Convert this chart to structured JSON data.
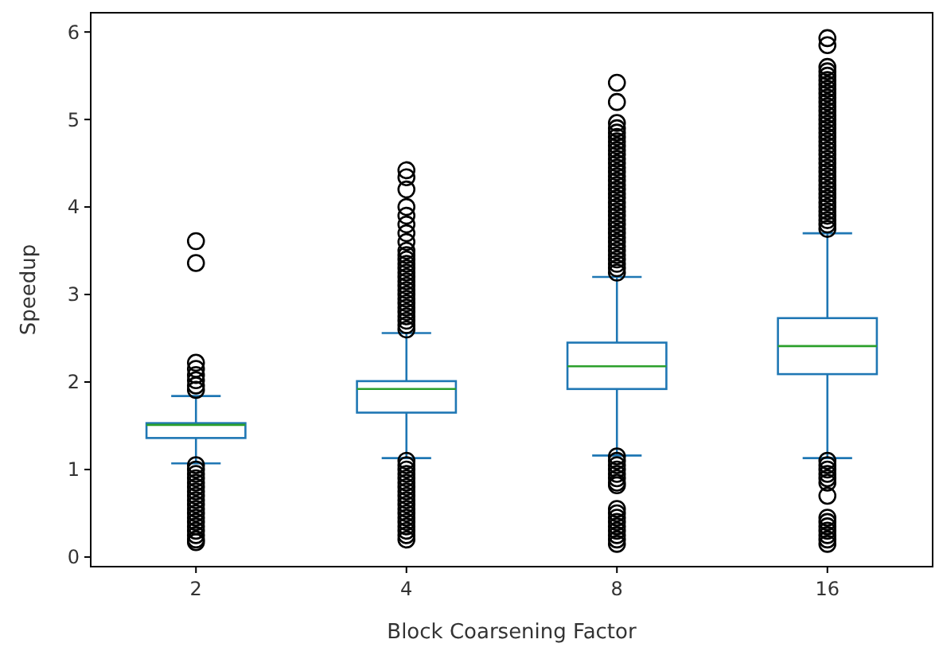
{
  "chart_data": {
    "type": "box",
    "xlabel": "Block Coarsening Factor",
    "ylabel": "Speedup",
    "categories": [
      "2",
      "4",
      "8",
      "16"
    ],
    "ylim": [
      -0.11,
      6.22
    ],
    "yticks": [
      0,
      1,
      2,
      3,
      4,
      5,
      6
    ],
    "series": [
      {
        "color": "#1f77b4",
        "boxes": [
          {
            "low": 1.07,
            "q1": 1.36,
            "median": 1.51,
            "q3": 1.53,
            "high": 1.84,
            "outliers": [
              3.61,
              3.36,
              2.22,
              2.15,
              2.08,
              2.02,
              1.96,
              1.91,
              1.05,
              1.0,
              0.95,
              0.9,
              0.85,
              0.8,
              0.75,
              0.7,
              0.65,
              0.6,
              0.55,
              0.5,
              0.45,
              0.4,
              0.35,
              0.3,
              0.25,
              0.2,
              0.17
            ]
          },
          {
            "low": 1.13,
            "q1": 1.65,
            "median": 1.92,
            "q3": 2.01,
            "high": 2.56,
            "outliers": [
              4.42,
              4.34,
              4.2,
              4.0,
              3.9,
              3.8,
              3.7,
              3.6,
              3.5,
              3.45,
              3.4,
              3.35,
              3.3,
              3.25,
              3.2,
              3.15,
              3.1,
              3.05,
              3.0,
              2.95,
              2.9,
              2.85,
              2.8,
              2.75,
              2.7,
              2.65,
              2.6,
              1.1,
              1.05,
              1.0,
              0.95,
              0.9,
              0.85,
              0.8,
              0.75,
              0.7,
              0.65,
              0.6,
              0.55,
              0.5,
              0.45,
              0.4,
              0.35,
              0.3,
              0.25,
              0.2
            ]
          },
          {
            "low": 1.16,
            "q1": 1.92,
            "median": 2.18,
            "q3": 2.45,
            "high": 3.2,
            "outliers": [
              5.42,
              5.2,
              4.96,
              4.9,
              4.85,
              4.8,
              4.75,
              4.7,
              4.65,
              4.6,
              4.55,
              4.5,
              4.45,
              4.4,
              4.35,
              4.3,
              4.25,
              4.2,
              4.15,
              4.1,
              4.05,
              4.0,
              3.95,
              3.9,
              3.85,
              3.8,
              3.75,
              3.7,
              3.65,
              3.6,
              3.55,
              3.5,
              3.45,
              3.4,
              3.35,
              3.3,
              3.25,
              1.15,
              1.1,
              1.05,
              1.0,
              0.95,
              0.9,
              0.85,
              0.82,
              0.55,
              0.5,
              0.45,
              0.4,
              0.35,
              0.3,
              0.25,
              0.2,
              0.15
            ]
          },
          {
            "low": 1.13,
            "q1": 2.09,
            "median": 2.41,
            "q3": 2.73,
            "high": 3.7,
            "outliers": [
              5.93,
              5.85,
              5.6,
              5.55,
              5.5,
              5.45,
              5.4,
              5.35,
              5.3,
              5.25,
              5.2,
              5.15,
              5.1,
              5.05,
              5.0,
              4.95,
              4.9,
              4.85,
              4.8,
              4.75,
              4.7,
              4.65,
              4.6,
              4.55,
              4.5,
              4.45,
              4.4,
              4.35,
              4.3,
              4.25,
              4.2,
              4.15,
              4.1,
              4.05,
              4.0,
              3.95,
              3.9,
              3.85,
              3.8,
              3.75,
              1.1,
              1.05,
              1.0,
              0.95,
              0.9,
              0.85,
              0.7,
              0.45,
              0.4,
              0.35,
              0.3,
              0.25,
              0.2,
              0.15
            ]
          }
        ]
      }
    ]
  }
}
